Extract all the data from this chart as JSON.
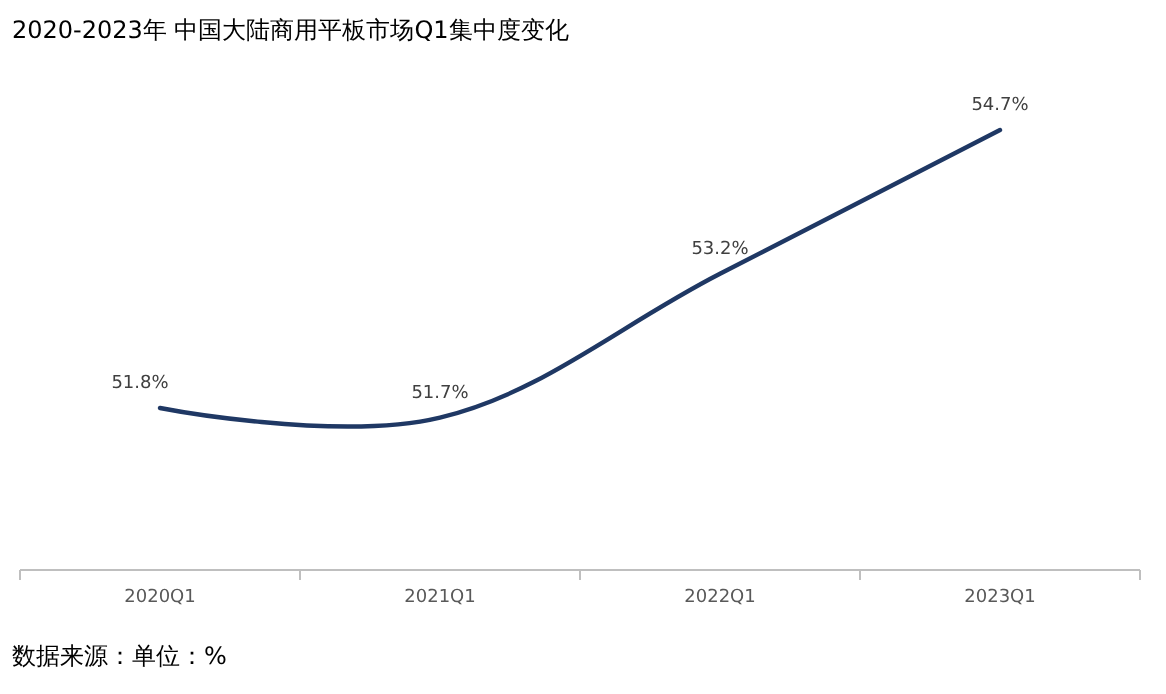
{
  "chart_data": {
    "type": "line",
    "title": "2020-2023年 中国大陆商用平板市场Q1集中度变化",
    "categories": [
      "2020Q1",
      "2021Q1",
      "2022Q1",
      "2023Q1"
    ],
    "series": [
      {
        "color": "#1f3864",
        "values": [
          51.8,
          51.7,
          53.2,
          54.7
        ],
        "value_labels": [
          "51.8%",
          "51.7%",
          "53.2%",
          "54.7%"
        ]
      }
    ],
    "grid": false,
    "marker": "none",
    "line_style": "solid",
    "annotations": [
      "数据来源：单位：%"
    ]
  }
}
